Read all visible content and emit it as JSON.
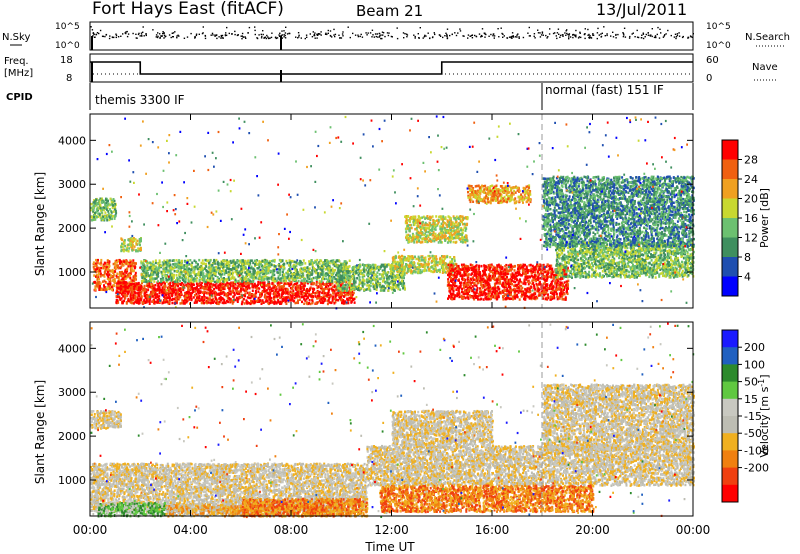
{
  "header": {
    "site": "Fort Hays East (fitACF)",
    "beam": "Beam 21",
    "date": "13/Jul/2011"
  },
  "top_panels": {
    "nsky_label": "N.Sky",
    "nsearch_label": "N.Search",
    "freq_label_1": "Freq.",
    "freq_label_2": "[MHz]",
    "nave_label": "Nave",
    "cpid_label": "CPID",
    "nsky_ticks": [
      "10^5",
      "10^0"
    ],
    "nsearch_ticks": [
      "10^5",
      "10^0"
    ],
    "freq_ticks": [
      "18",
      "8"
    ],
    "nave_ticks": [
      "60",
      "0"
    ],
    "cpid_segments": [
      {
        "label": "themis 3300 IF",
        "start_hour": 0,
        "end_hour": 18
      },
      {
        "label": "normal (fast) 151 IF",
        "start_hour": 18,
        "end_hour": 24
      }
    ],
    "freq_steps": [
      {
        "start_hour": 0.0,
        "end_hour": 2.0,
        "level": "high"
      },
      {
        "start_hour": 2.0,
        "end_hour": 14.0,
        "level": "low"
      },
      {
        "start_hour": 14.0,
        "end_hour": 24.0,
        "level": "high"
      }
    ]
  },
  "colors": {
    "power": [
      "#0000ff",
      "#1f4fb0",
      "#3f8f5f",
      "#6cc070",
      "#c8d830",
      "#f0a020",
      "#f06010",
      "#ff0000"
    ],
    "velocity": [
      "#1a1aff",
      "#2060c0",
      "#2c8a2c",
      "#60c840",
      "#c8c8c0",
      "#bdbdb3",
      "#f0b020",
      "#f08010",
      "#f04010",
      "#ff0000"
    ],
    "ground_scatter": "#bdbdb3"
  },
  "chart_data": [
    {
      "type": "heatmap",
      "title": "Power",
      "xlabel": "",
      "ylabel": "Slant Range [km]",
      "xlim": [
        0,
        24
      ],
      "ylim": [
        180,
        4600
      ],
      "x_ticks": [
        "00:00",
        "04:00",
        "08:00",
        "12:00",
        "16:00",
        "20:00",
        "00:00"
      ],
      "y_ticks": [
        1000,
        2000,
        3000,
        4000
      ],
      "colorbar": {
        "label": "Power [dB]",
        "ticks": [
          4,
          8,
          12,
          16,
          20,
          24,
          28
        ]
      },
      "blobs": [
        {
          "t0": 0.1,
          "t1": 1.8,
          "r0": 600,
          "r1": 1300,
          "level": 6
        },
        {
          "t0": 1.0,
          "t1": 10.5,
          "r0": 300,
          "r1": 800,
          "level": 7
        },
        {
          "t0": 2.0,
          "t1": 10.3,
          "r0": 800,
          "r1": 1300,
          "level": 3
        },
        {
          "t0": 1.2,
          "t1": 2.0,
          "r0": 1500,
          "r1": 1800,
          "level": 4
        },
        {
          "t0": 9.8,
          "t1": 12.5,
          "r0": 600,
          "r1": 1200,
          "level": 3
        },
        {
          "t0": 12.0,
          "t1": 14.5,
          "r0": 1000,
          "r1": 1400,
          "level": 4
        },
        {
          "t0": 14.2,
          "t1": 19.0,
          "r0": 400,
          "r1": 1200,
          "level": 7
        },
        {
          "t0": 18.5,
          "t1": 24.0,
          "r0": 900,
          "r1": 1700,
          "level": 3
        },
        {
          "t0": 18.0,
          "t1": 24.0,
          "r0": 1600,
          "r1": 3200,
          "level": 2
        },
        {
          "t0": 12.5,
          "t1": 15.0,
          "r0": 1700,
          "r1": 2300,
          "level": 4
        },
        {
          "t0": 0.0,
          "t1": 1.0,
          "r0": 2200,
          "r1": 2700,
          "level": 3
        },
        {
          "t0": 15.0,
          "t1": 17.5,
          "r0": 2600,
          "r1": 3000,
          "level": 5
        }
      ]
    },
    {
      "type": "heatmap",
      "title": "Velocity",
      "xlabel": "Time UT",
      "ylabel": "Slant Range [km]",
      "xlim": [
        0,
        24
      ],
      "ylim": [
        180,
        4600
      ],
      "x_ticks": [
        "00:00",
        "04:00",
        "08:00",
        "12:00",
        "16:00",
        "20:00",
        "00:00"
      ],
      "y_ticks": [
        1000,
        2000,
        3000,
        4000
      ],
      "colorbar": {
        "label": "Velocity [m s^-1]",
        "ticks": [
          200,
          100,
          50,
          15,
          -15,
          -50,
          -100,
          -200
        ]
      },
      "blobs": [
        {
          "t0": 0.0,
          "t1": 11.0,
          "r0": 300,
          "r1": 1400,
          "level": 5
        },
        {
          "t0": 0.3,
          "t1": 3.0,
          "r0": 200,
          "r1": 500,
          "level": 3
        },
        {
          "t0": 3.0,
          "t1": 10.0,
          "r0": 200,
          "r1": 450,
          "level": 6
        },
        {
          "t0": 6.0,
          "t1": 11.0,
          "r0": 200,
          "r1": 600,
          "level": 7
        },
        {
          "t0": 11.0,
          "t1": 24.0,
          "r0": 900,
          "r1": 1800,
          "level": 5
        },
        {
          "t0": 12.0,
          "t1": 16.0,
          "r0": 1800,
          "r1": 2600,
          "level": 5
        },
        {
          "t0": 18.0,
          "t1": 24.0,
          "r0": 1700,
          "r1": 3200,
          "level": 5
        },
        {
          "t0": 0.0,
          "t1": 1.2,
          "r0": 2200,
          "r1": 2600,
          "level": 5
        },
        {
          "t0": 11.5,
          "t1": 20.0,
          "r0": 300,
          "r1": 900,
          "level": 7
        }
      ]
    }
  ]
}
